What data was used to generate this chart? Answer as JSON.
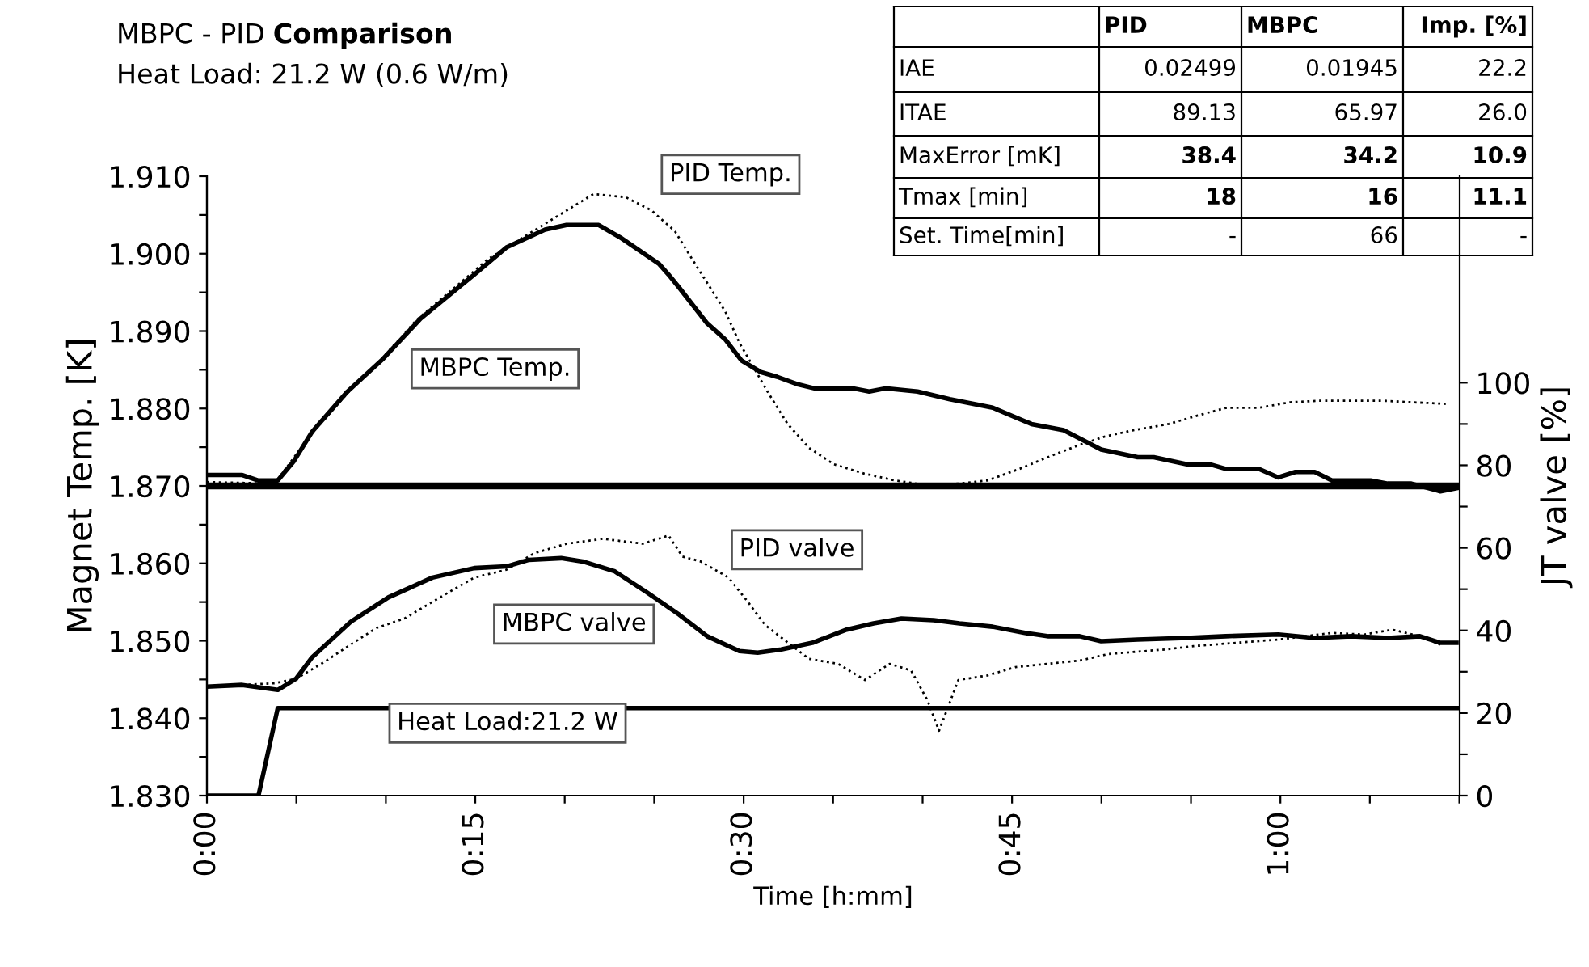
{
  "chart_data": {
    "type": "line",
    "title": "MBPC - PID Comparison",
    "subtitle": "Heat Load: 21.2 W (0.6 W/m)",
    "xlabel": "Time [h:mm]",
    "ylabel": "Magnet Temp. [K]",
    "y2label": "JT valve [%]",
    "xlim": [
      0,
      1.167
    ],
    "xticks": [
      {
        "value": 0,
        "label": "0:00"
      },
      {
        "value": 0.0833,
        "label": null
      },
      {
        "value": 0.1667,
        "label": null
      },
      {
        "value": 0.25,
        "label": "0:15"
      },
      {
        "value": 0.3333,
        "label": null
      },
      {
        "value": 0.4167,
        "label": null
      },
      {
        "value": 0.5,
        "label": "0:30"
      },
      {
        "value": 0.5833,
        "label": null
      },
      {
        "value": 0.6667,
        "label": null
      },
      {
        "value": 0.75,
        "label": "0:45"
      },
      {
        "value": 0.8333,
        "label": null
      },
      {
        "value": 0.9167,
        "label": null
      },
      {
        "value": 1.0,
        "label": "1:00"
      },
      {
        "value": 1.0833,
        "label": null
      },
      {
        "value": 1.1667,
        "label": null
      }
    ],
    "ylim": [
      1.83,
      1.91
    ],
    "yticks": [
      {
        "value": 1.83,
        "label": "1.830"
      },
      {
        "value": 1.835,
        "label": null
      },
      {
        "value": 1.84,
        "label": "1.840"
      },
      {
        "value": 1.845,
        "label": null
      },
      {
        "value": 1.85,
        "label": "1.850"
      },
      {
        "value": 1.855,
        "label": null
      },
      {
        "value": 1.86,
        "label": "1.860"
      },
      {
        "value": 1.865,
        "label": null
      },
      {
        "value": 1.87,
        "label": "1.870"
      },
      {
        "value": 1.875,
        "label": null
      },
      {
        "value": 1.88,
        "label": "1.880"
      },
      {
        "value": 1.885,
        "label": null
      },
      {
        "value": 1.89,
        "label": "1.890"
      },
      {
        "value": 1.895,
        "label": null
      },
      {
        "value": 1.9,
        "label": "1.900"
      },
      {
        "value": 1.905,
        "label": null
      },
      {
        "value": 1.91,
        "label": "1.910"
      }
    ],
    "y2lim": [
      0,
      150
    ],
    "y2ticks": [
      0,
      {
        "value": 10,
        "label": null
      },
      20,
      {
        "value": 30,
        "label": null
      },
      40,
      {
        "value": 50,
        "label": null
      },
      60,
      {
        "value": 70,
        "label": null
      },
      80,
      {
        "value": 90,
        "label": null
      },
      100
    ],
    "grid": false,
    "legend": false,
    "marker": "none",
    "ref_lines": [
      {
        "axis": "y",
        "value": 1.87,
        "color": "#000000"
      }
    ],
    "series": [
      {
        "name": "PID Temp.",
        "color": "#000000",
        "line_style": "dotted",
        "x": [
          0,
          0.063,
          0.098,
          0.131,
          0.164,
          0.195,
          0.262,
          0.319,
          0.36,
          0.39,
          0.414,
          0.436,
          0.452,
          0.468,
          0.483,
          0.496,
          0.523,
          0.541,
          0.561,
          0.584,
          0.612,
          0.641,
          0.671,
          0.7,
          0.727,
          0.757,
          0.783,
          0.813,
          0.837,
          0.863,
          0.896,
          0.923,
          0.95,
          0.98,
          1.009,
          1.036,
          1.066,
          1.096,
          1.124,
          1.154
        ],
        "values": [
          1.8705,
          1.8703,
          1.8768,
          1.882,
          1.8866,
          1.8914,
          1.8993,
          1.9042,
          1.9077,
          1.9073,
          1.9056,
          1.9029,
          1.8993,
          1.8958,
          1.8925,
          1.8885,
          1.882,
          1.878,
          1.8749,
          1.8728,
          1.8716,
          1.8707,
          1.8701,
          1.8703,
          1.8707,
          1.8722,
          1.8737,
          1.8753,
          1.8764,
          1.8772,
          1.878,
          1.8791,
          1.8801,
          1.8801,
          1.8808,
          1.881,
          1.881,
          1.881,
          1.8808,
          1.8806
        ]
      },
      {
        "name": "MBPC Temp.",
        "color": "#000000",
        "line_style": "solid",
        "x": [
          0,
          0.033,
          0.048,
          0.066,
          0.081,
          0.098,
          0.131,
          0.164,
          0.199,
          0.249,
          0.279,
          0.315,
          0.335,
          0.365,
          0.385,
          0.421,
          0.43,
          0.44,
          0.466,
          0.483,
          0.498,
          0.516,
          0.531,
          0.551,
          0.566,
          0.602,
          0.617,
          0.632,
          0.662,
          0.692,
          0.732,
          0.768,
          0.798,
          0.833,
          0.867,
          0.882,
          0.913,
          0.934,
          0.949,
          0.98,
          0.998,
          1.014,
          1.032,
          1.048,
          1.084,
          1.1,
          1.122,
          1.149,
          1.164
        ],
        "values": [
          1.8714,
          1.8714,
          1.8707,
          1.8707,
          1.8732,
          1.877,
          1.8822,
          1.8864,
          1.8916,
          1.8973,
          1.9008,
          1.9031,
          1.9037,
          1.9037,
          1.9021,
          1.8987,
          1.8973,
          1.8956,
          1.891,
          1.8889,
          1.8862,
          1.8847,
          1.8841,
          1.8831,
          1.8826,
          1.8826,
          1.8822,
          1.8826,
          1.8822,
          1.8812,
          1.8801,
          1.878,
          1.8772,
          1.8747,
          1.8737,
          1.8737,
          1.8728,
          1.8728,
          1.8722,
          1.8722,
          1.8711,
          1.8718,
          1.8718,
          1.8707,
          1.8707,
          1.8703,
          1.8703,
          1.8693,
          1.8697
        ]
      },
      {
        "name": "PID valve",
        "color": "#000000",
        "line_style": "dotted",
        "axis": "y2",
        "x": [
          0,
          0.063,
          0.083,
          0.109,
          0.134,
          0.158,
          0.184,
          0.225,
          0.249,
          0.279,
          0.305,
          0.335,
          0.369,
          0.406,
          0.43,
          0.443,
          0.46,
          0.486,
          0.504,
          0.52,
          0.561,
          0.588,
          0.613,
          0.636,
          0.656,
          0.671,
          0.682,
          0.689,
          0.7,
          0.727,
          0.753,
          0.783,
          0.813,
          0.84,
          0.893,
          0.919,
          0.998,
          1.048,
          1.078,
          1.104,
          1.13,
          1.149
        ],
        "values": [
          26.4,
          27.2,
          28.3,
          32.3,
          36.6,
          40.6,
          42.9,
          49.2,
          52.8,
          54.7,
          58.7,
          61.0,
          62.2,
          61.0,
          63.0,
          57.9,
          56.7,
          52.8,
          46.9,
          41.3,
          33.1,
          31.9,
          28.0,
          31.9,
          30.3,
          23.2,
          15.7,
          20.5,
          28.0,
          29.1,
          31.1,
          31.9,
          32.7,
          34.3,
          35.4,
          36.2,
          37.8,
          39.4,
          39.0,
          40.2,
          38.6,
          36.6
        ]
      },
      {
        "name": "MBPC valve",
        "color": "#000000",
        "line_style": "solid",
        "axis": "y2",
        "x": [
          0,
          0.033,
          0.066,
          0.083,
          0.098,
          0.134,
          0.169,
          0.21,
          0.249,
          0.279,
          0.3,
          0.33,
          0.35,
          0.38,
          0.41,
          0.44,
          0.466,
          0.496,
          0.513,
          0.535,
          0.564,
          0.596,
          0.621,
          0.647,
          0.677,
          0.701,
          0.732,
          0.762,
          0.784,
          0.813,
          0.833,
          0.867,
          0.913,
          0.949,
          0.998,
          1.032,
          1.066,
          1.1,
          1.13,
          1.149,
          1.164
        ],
        "values": [
          26.4,
          26.8,
          25.6,
          28.3,
          33.5,
          42.1,
          48.0,
          52.8,
          55.1,
          55.5,
          57.1,
          57.5,
          56.7,
          54.3,
          49.2,
          43.8,
          38.6,
          35.0,
          34.6,
          35.4,
          37.0,
          40.2,
          41.7,
          42.9,
          42.5,
          41.7,
          40.9,
          39.4,
          38.6,
          38.6,
          37.4,
          37.8,
          38.2,
          38.6,
          39.0,
          38.2,
          38.6,
          38.2,
          38.6,
          37.0,
          37.0
        ]
      },
      {
        "name": "Heat Load:21.2 W",
        "color": "#000000",
        "line_style": "solid",
        "axis": "y2",
        "x": [
          0,
          0.048,
          0.066,
          1.167
        ],
        "values": [
          0,
          0,
          21.2,
          21.2
        ]
      }
    ],
    "annotations": [
      "PID",
      "MBPC",
      "Imp. [%]",
      "IAE",
      "0.02499",
      "0.01945",
      "22.2",
      "ITAE",
      "89.13",
      "65.97",
      "26.0",
      "MaxError [mK]",
      "38.4",
      "34.2",
      "10.9",
      "Tmax [min]",
      "18",
      "16",
      "11.1",
      "Set. Time[min]",
      "-",
      "66",
      "-"
    ]
  }
}
